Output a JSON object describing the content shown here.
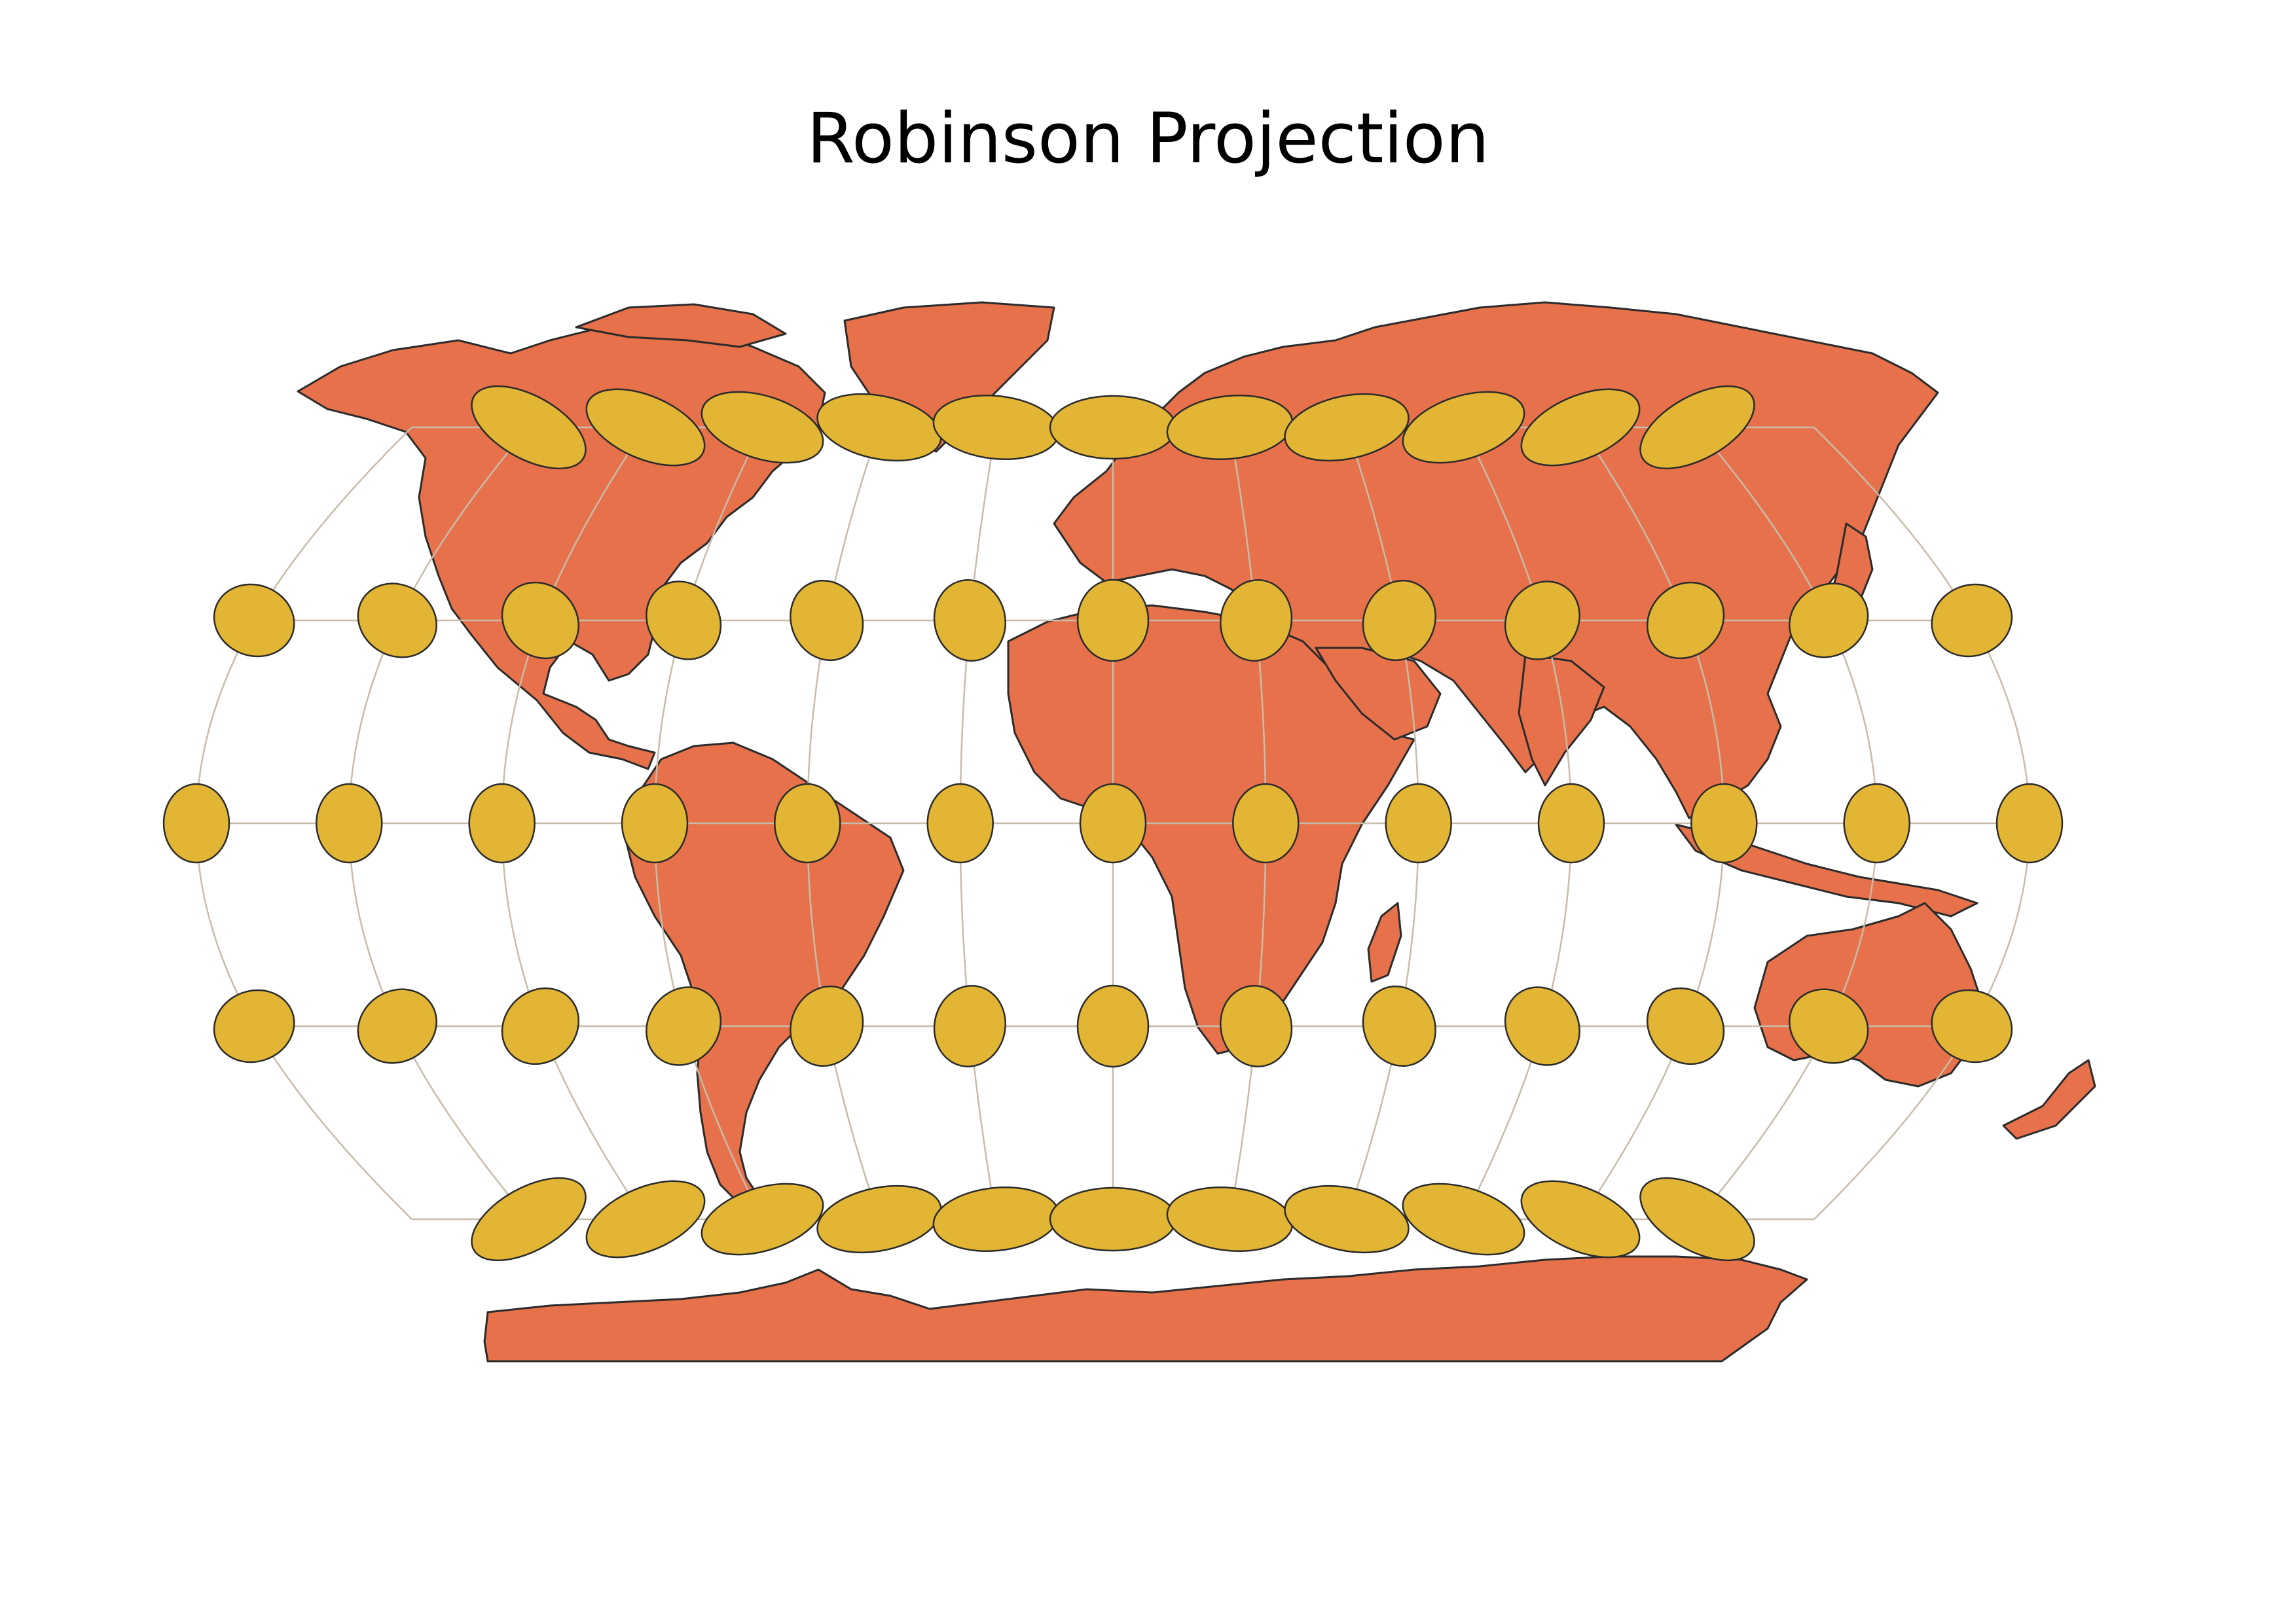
{
  "title": "Robinson Projection",
  "colors": {
    "background": "#ffffff",
    "land": "#e6714a",
    "coastline": "#2b2b2b",
    "graticule": "#c8bcaa",
    "indicatrix": "#e2b534",
    "indicatrix_outline": "#2b2b2b"
  },
  "graticule": {
    "meridians_deg": [
      -180,
      -150,
      -120,
      -90,
      -60,
      -30,
      0,
      30,
      60,
      90,
      120,
      150,
      180
    ],
    "parallels_deg": [
      -60,
      -30,
      0,
      30,
      60
    ]
  },
  "indicatrices": {
    "longitudes_deg": [
      -150,
      -120,
      -90,
      -60,
      -30,
      0,
      30,
      60,
      90,
      120,
      150
    ],
    "latitudes_deg": [
      60,
      30,
      0,
      -30,
      -60
    ],
    "extra_equator_longitudes_deg": [
      -180,
      180
    ],
    "extra_mid_longitudes_deg": [
      -180,
      180
    ]
  }
}
